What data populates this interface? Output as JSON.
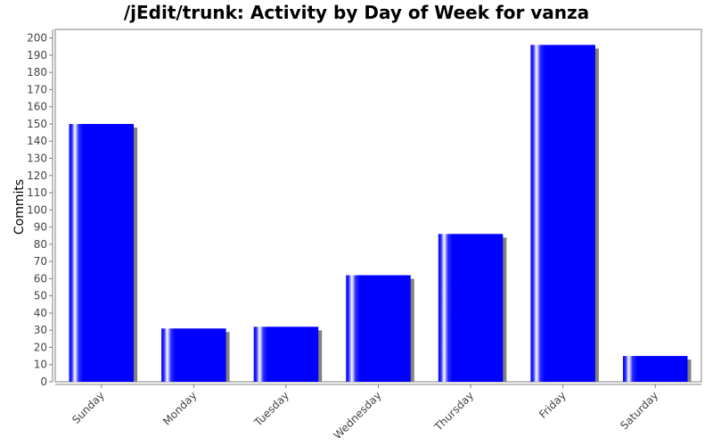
{
  "chart_data": {
    "type": "bar",
    "title": "/jEdit/trunk: Activity by Day of Week for vanza",
    "xlabel": "",
    "ylabel": "Commits",
    "categories": [
      "Sunday",
      "Monday",
      "Tuesday",
      "Wednesday",
      "Thursday",
      "Friday",
      "Saturday"
    ],
    "values": [
      150,
      31,
      32,
      62,
      86,
      196,
      15
    ],
    "ylim": [
      0,
      205
    ],
    "yticks": [
      0,
      10,
      20,
      30,
      40,
      50,
      60,
      70,
      80,
      90,
      100,
      110,
      120,
      130,
      140,
      150,
      160,
      170,
      180,
      190,
      200
    ],
    "grid": false,
    "legend": "none",
    "colors": {
      "bar": "#0000ff",
      "bar_highlight": "#ffffff",
      "shadow": "#808080",
      "axis": "#808080"
    }
  }
}
